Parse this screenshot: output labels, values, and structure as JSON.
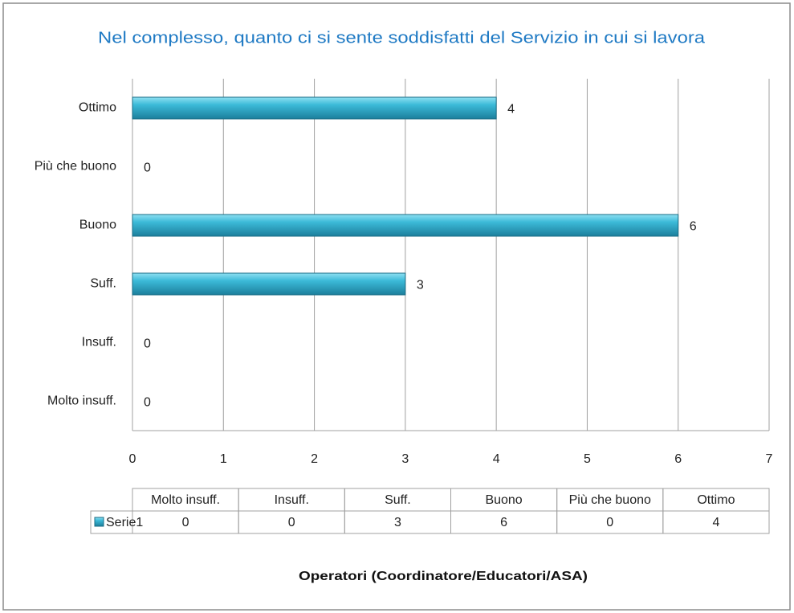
{
  "chart_data": {
    "type": "bar",
    "orientation": "horizontal",
    "title": "Nel complesso, quanto ci si sente soddisfatti del Servizio in cui si lavora",
    "x_label": "Operatori (Coordinatore/Educatori/ASA)",
    "categories": [
      "Molto insuff.",
      "Insuff.",
      "Suff.",
      "Buono",
      "Più che buono",
      "Ottimo"
    ],
    "series": [
      {
        "name": "Serie1",
        "color": "#2aa9cc",
        "values": [
          0,
          0,
          3,
          6,
          0,
          4
        ]
      }
    ],
    "xlim": [
      0,
      7
    ],
    "xticks": [
      0,
      1,
      2,
      3,
      4,
      5,
      6,
      7
    ],
    "grid": true,
    "data_table": true
  }
}
